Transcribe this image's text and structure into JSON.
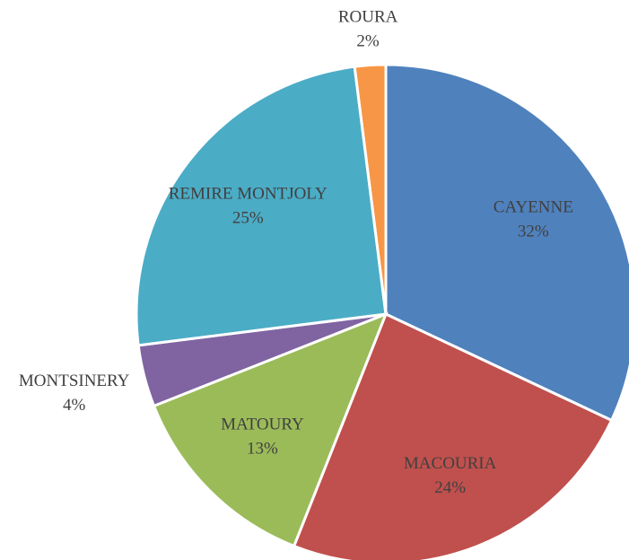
{
  "chart_data": {
    "type": "pie",
    "categories": [
      "CAYENNE",
      "MACOURIA",
      "MATOURY",
      "MONTSINERY",
      "REMIRE MONTJOLY",
      "ROURA"
    ],
    "values": [
      32,
      24,
      13,
      4,
      25,
      2
    ],
    "value_labels": [
      "32%",
      "24%",
      "13%",
      "4%",
      "25%",
      "2%"
    ],
    "colors": [
      "#4f81bd",
      "#c0504d",
      "#9bbb59",
      "#8064a2",
      "#4bacc6",
      "#f79646"
    ]
  }
}
